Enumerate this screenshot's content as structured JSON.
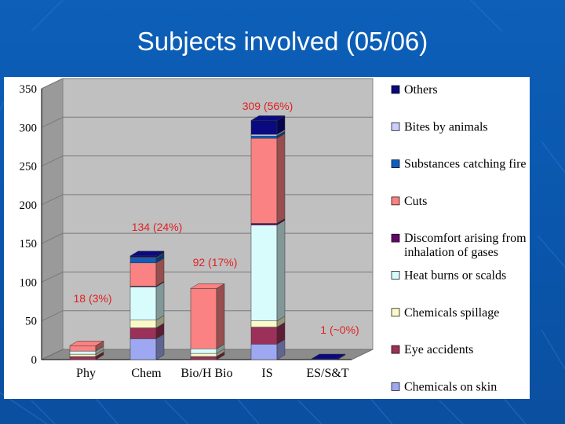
{
  "slide": {
    "title": "Subjects involved (05/06)"
  },
  "colors": {
    "background": "#0b5bb5",
    "Chemicals on skin": "#9ea8f2",
    "Eye accidents": "#9b3158",
    "Chemicals spillage": "#fbf9c8",
    "Heat burns or scalds": "#d8fcfc",
    "Discomfort arising from inhalation of gases": "#650565",
    "Cuts": "#fa8282",
    "Substances catching fire": "#0a5fc0",
    "Bites by animals": "#c9cefc",
    "Others": "#090a80",
    "annotation": "#e02020"
  },
  "chart_data": {
    "type": "bar",
    "stacked": true,
    "three_d": true,
    "categories": [
      "Phy",
      "Chem",
      "Bio/H Bio",
      "IS",
      "ES/S&T"
    ],
    "ylim": [
      0,
      350
    ],
    "yticks": [
      0,
      50,
      100,
      150,
      200,
      250,
      300,
      350
    ],
    "grid": true,
    "legend_position": "right",
    "series": [
      {
        "name": "Chemicals on skin",
        "values": [
          0,
          27,
          0,
          20,
          0
        ]
      },
      {
        "name": "Eye accidents",
        "values": [
          4,
          14,
          4,
          22,
          0
        ]
      },
      {
        "name": "Chemicals spillage",
        "values": [
          3,
          10,
          4,
          8,
          0
        ]
      },
      {
        "name": "Heat burns or scalds",
        "values": [
          4,
          43,
          6,
          124,
          0
        ]
      },
      {
        "name": "Discomfort arising from inhalation of gases",
        "values": [
          0,
          1,
          0,
          2,
          0
        ]
      },
      {
        "name": "Cuts",
        "values": [
          7,
          30,
          78,
          110,
          0
        ]
      },
      {
        "name": "Substances catching fire",
        "values": [
          0,
          6,
          0,
          3,
          0
        ]
      },
      {
        "name": "Bites by animals",
        "values": [
          0,
          1,
          0,
          2,
          0
        ]
      },
      {
        "name": "Others",
        "values": [
          0,
          2,
          0,
          18,
          1
        ]
      }
    ],
    "legend_order": [
      "Others",
      "Bites by animals",
      "Substances catching fire",
      "Cuts",
      "Discomfort arising from inhalation of gases",
      "Heat burns or scalds",
      "Chemicals spillage",
      "Eye accidents",
      "Chemicals on skin"
    ],
    "legend_labels": {
      "Others": [
        "Others"
      ],
      "Bites by animals": [
        "Bites by animals"
      ],
      "Substances catching fire": [
        "Substances catching fire"
      ],
      "Cuts": [
        "Cuts"
      ],
      "Discomfort arising from inhalation of gases": [
        "Discomfort arising from",
        "inhalation of gases"
      ],
      "Heat burns or scalds": [
        "Heat burns or scalds"
      ],
      "Chemicals spillage": [
        "Chemicals spillage"
      ],
      "Eye accidents": [
        "Eye accidents"
      ],
      "Chemicals on skin": [
        "Chemicals on skin"
      ]
    },
    "annotations": [
      {
        "category": "Phy",
        "text": "18 (3%)"
      },
      {
        "category": "Chem",
        "text": "134 (24%)"
      },
      {
        "category": "Bio/H Bio",
        "text": "92 (17%)"
      },
      {
        "category": "IS",
        "text": "309 (56%)"
      },
      {
        "category": "ES/S&T",
        "text": "1 (~0%)"
      }
    ]
  }
}
